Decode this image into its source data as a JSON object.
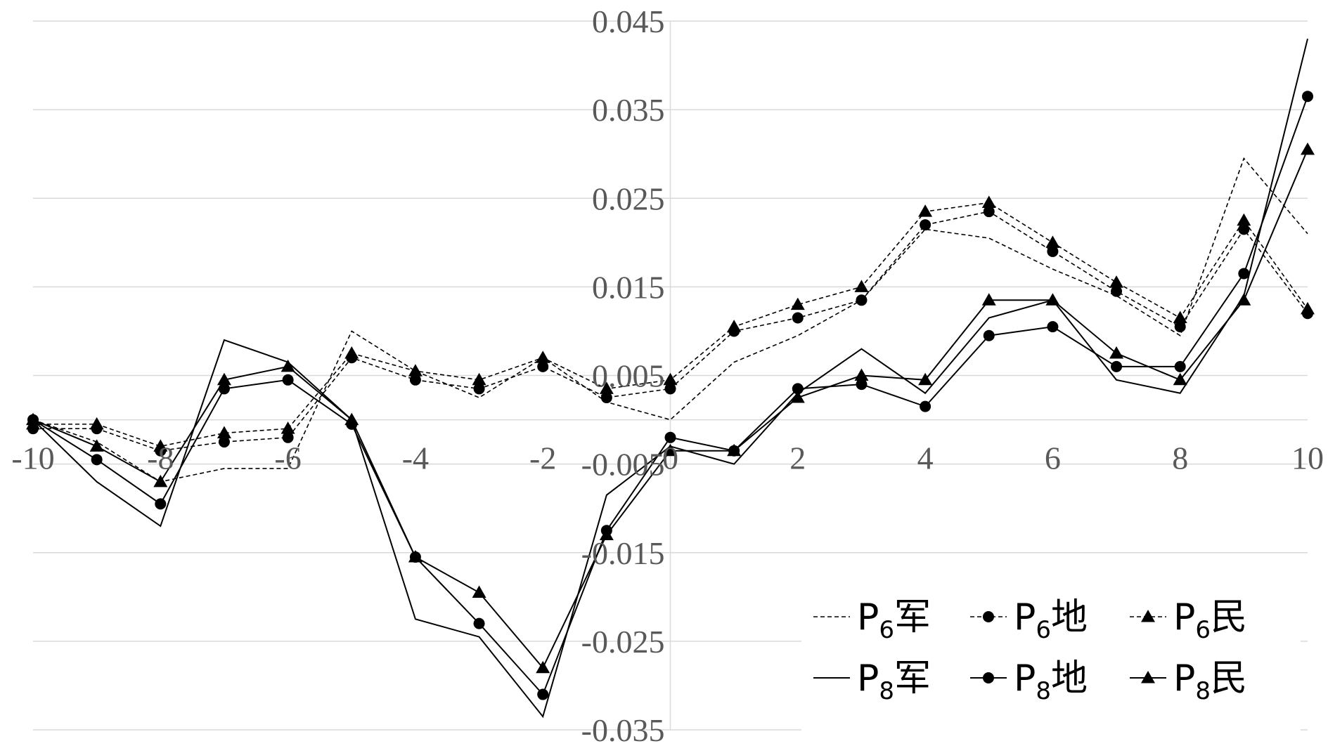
{
  "chart_data": {
    "type": "line",
    "x": [
      -10,
      -9,
      -8,
      -7,
      -6,
      -5,
      -4,
      -3,
      -2,
      -1,
      0,
      1,
      2,
      3,
      4,
      5,
      6,
      7,
      8,
      9,
      10
    ],
    "x_ticks": [
      "-10",
      "-8",
      "-6",
      "-4",
      "-2",
      "0",
      "2",
      "4",
      "6",
      "8",
      "10"
    ],
    "x_tick_values": [
      -10,
      -8,
      -6,
      -4,
      -2,
      0,
      2,
      4,
      6,
      8,
      10
    ],
    "y_ticks": [
      "0.045",
      "0.035",
      "0.025",
      "0.015",
      "0.005",
      "-0.005",
      "-0.015",
      "-0.025",
      "-0.035"
    ],
    "y_tick_values": [
      0.045,
      0.035,
      0.025,
      0.015,
      0.005,
      -0.005,
      -0.015,
      -0.025,
      -0.035
    ],
    "xlim": [
      -10,
      10
    ],
    "ylim": [
      -0.035,
      0.045
    ],
    "grid": "horizontal",
    "legend_position": "bottom-right",
    "series": [
      {
        "name": "P6军",
        "base": "P",
        "sub": "6",
        "suffix": "军",
        "style": "dashed",
        "marker": "none",
        "values": [
          0.0,
          -0.0025,
          -0.007,
          -0.0055,
          -0.0055,
          0.01,
          0.0055,
          0.0025,
          0.007,
          0.002,
          0.0,
          0.0065,
          0.0095,
          0.0135,
          0.0215,
          0.0205,
          0.017,
          0.014,
          0.0095,
          0.0295,
          0.021
        ]
      },
      {
        "name": "P6地",
        "base": "P",
        "sub": "6",
        "suffix": "地",
        "style": "dashed",
        "marker": "circle",
        "values": [
          -0.001,
          -0.001,
          -0.0035,
          -0.0025,
          -0.002,
          0.007,
          0.0045,
          0.0035,
          0.006,
          0.0025,
          0.0035,
          0.01,
          0.0115,
          0.0135,
          0.022,
          0.0235,
          0.019,
          0.0145,
          0.0105,
          0.0215,
          0.012
        ]
      },
      {
        "name": "P6民",
        "base": "P",
        "sub": "6",
        "suffix": "民",
        "style": "dashed",
        "marker": "triangle",
        "values": [
          -0.0005,
          -0.0005,
          -0.003,
          -0.0015,
          -0.001,
          0.0075,
          0.0055,
          0.0045,
          0.007,
          0.0035,
          0.0045,
          0.0105,
          0.013,
          0.015,
          0.0235,
          0.0245,
          0.02,
          0.0155,
          0.0115,
          0.0225,
          0.0125
        ]
      },
      {
        "name": "P8军",
        "base": "P",
        "sub": "8",
        "suffix": "军",
        "style": "solid",
        "marker": "none",
        "values": [
          0.0,
          -0.007,
          -0.012,
          0.009,
          0.0065,
          0.0,
          -0.0225,
          -0.0245,
          -0.0335,
          -0.0085,
          -0.003,
          -0.005,
          0.003,
          0.008,
          0.003,
          0.0115,
          0.0135,
          0.0045,
          0.003,
          0.014,
          0.043
        ]
      },
      {
        "name": "P8地",
        "base": "P",
        "sub": "8",
        "suffix": "地",
        "style": "solid",
        "marker": "circle",
        "values": [
          0.0,
          -0.0045,
          -0.0095,
          0.0035,
          0.0045,
          -0.0005,
          -0.0155,
          -0.023,
          -0.031,
          -0.0125,
          -0.002,
          -0.0035,
          0.0035,
          0.004,
          0.0015,
          0.0095,
          0.0105,
          0.006,
          0.006,
          0.0165,
          0.0365
        ]
      },
      {
        "name": "P8民",
        "base": "P",
        "sub": "8",
        "suffix": "民",
        "style": "solid",
        "marker": "triangle",
        "values": [
          0.0,
          -0.003,
          -0.007,
          0.0045,
          0.006,
          0.0,
          -0.0155,
          -0.0195,
          -0.028,
          -0.013,
          -0.0035,
          -0.0035,
          0.0025,
          0.005,
          0.0045,
          0.0135,
          0.0135,
          0.0075,
          0.0045,
          0.0135,
          0.0305
        ]
      }
    ]
  }
}
